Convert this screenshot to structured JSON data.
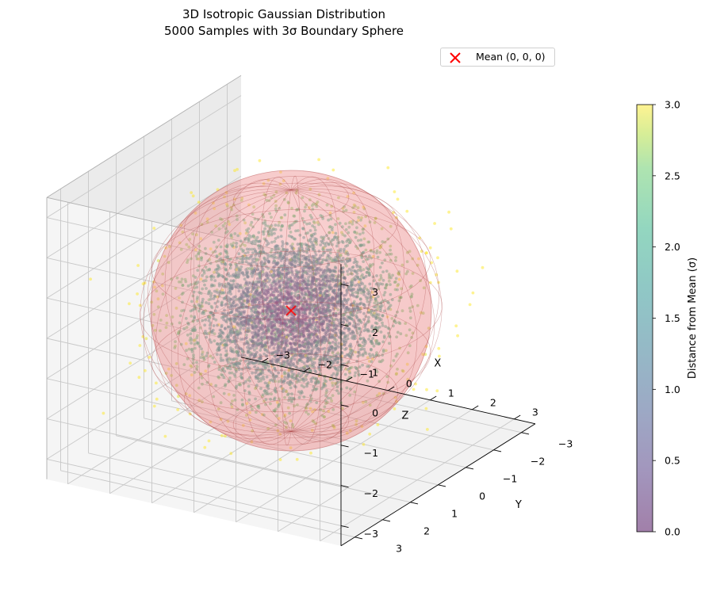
{
  "chart_data": {
    "type": "scatter",
    "projection": "3d",
    "title": "3D Isotropic Gaussian Distribution",
    "subtitle": "5000 Samples with 3σ Boundary Sphere",
    "xlabel": "X",
    "ylabel": "Y",
    "zlabel": "Z",
    "xlim": [
      -3.5,
      3.5
    ],
    "ylim": [
      -3.5,
      3.5
    ],
    "zlim": [
      -3.5,
      3.5
    ],
    "xticks": [
      "−3",
      "−2",
      "−1",
      "0",
      "1",
      "2",
      "3"
    ],
    "yticks": [
      "−3",
      "−2",
      "−1",
      "0",
      "1",
      "2",
      "3"
    ],
    "zticks": [
      "−3",
      "−2",
      "−1",
      "0",
      "1",
      "2",
      "3"
    ],
    "grid": true,
    "distribution": {
      "mean": [
        0,
        0,
        0
      ],
      "std": 1,
      "n_samples": 5000
    },
    "boundary_sphere": {
      "radius_sigma": 3,
      "color": "#f08080",
      "alpha": 0.4
    },
    "mean_marker": {
      "label": "Mean (0, 0, 0)",
      "position": [
        0,
        0,
        0
      ],
      "color": "#ff0000",
      "marker": "x"
    },
    "legend": {
      "placement": "upper-right",
      "entries": [
        "Mean (0, 0, 0)"
      ]
    },
    "colorbar": {
      "label": "Distance from Mean (σ)",
      "colormap": "viridis",
      "range": [
        0.0,
        3.0
      ],
      "ticks": [
        "0.0",
        "0.5",
        "1.0",
        "1.5",
        "2.0",
        "2.5",
        "3.0"
      ],
      "alpha": 0.5
    }
  }
}
